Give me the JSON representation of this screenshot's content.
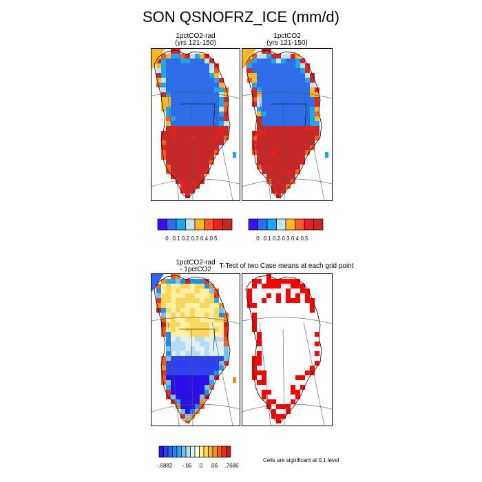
{
  "figure": {
    "title": "SON QSNOFRZ_ICE (mm/d)",
    "panels": [
      {
        "id": "rad",
        "title_line1": "1pctCO2-rad",
        "title_line2": "(yrs 121-150)",
        "type": "mean"
      },
      {
        "id": "ctl",
        "title_line1": "1pctCO2",
        "title_line2": "(yrs 121-150)",
        "type": "mean"
      },
      {
        "id": "diff",
        "title_line1": "1pctCO2-rad",
        "title_line2": "- 1pctCO2",
        "type": "difference"
      },
      {
        "id": "ttest",
        "title_line1": "T-Test of two Case means at each grid point",
        "title_line2": "",
        "type": "significance"
      }
    ],
    "mean_colorbar": {
      "colors": [
        "#3a10f0",
        "#2f6ce8",
        "#1aa6f2",
        "#bde5f2",
        "#f9b823",
        "#f45d1e",
        "#e8211e",
        "#c62828"
      ],
      "labels": [
        "0",
        "0.1",
        "0.2",
        "0.3",
        "0.4",
        "0.5"
      ]
    },
    "diff_colorbar": {
      "colors": [
        "#2c10e8",
        "#2e44ea",
        "#2f66ea",
        "#1e8ef0",
        "#28a7f2",
        "#74c3f2",
        "#b4dcf2",
        "#dff0f5",
        "#fffbe0",
        "#fff0a6",
        "#fbd65a",
        "#f9b426",
        "#f78e1e",
        "#f25e1e",
        "#e8301e",
        "#c81e1e"
      ],
      "labels": [
        "-.6882",
        "-.06",
        ".0",
        ".06",
        ".7686"
      ]
    },
    "significance_note": "Cells are significant at 0.1 level",
    "significance_color": "#ff0000"
  }
}
